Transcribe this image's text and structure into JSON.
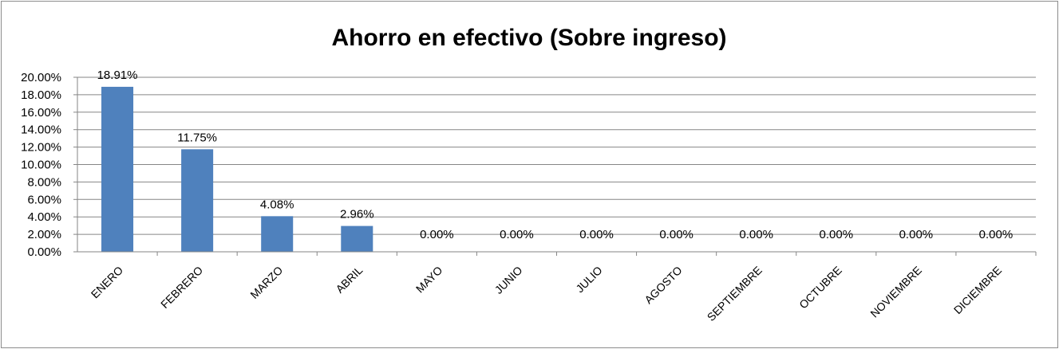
{
  "chart_data": {
    "type": "bar",
    "title": "Ahorro en efectivo (Sobre ingreso)",
    "xlabel": "",
    "ylabel": "",
    "categories": [
      "ENERO",
      "FEBRERO",
      "MARZO",
      "ABRIL",
      "MAYO",
      "JUNIO",
      "JULIO",
      "AGOSTO",
      "SEPTIEMBRE",
      "OCTUBRE",
      "NOVIEMBRE",
      "DICIEMBRE"
    ],
    "values": [
      18.91,
      11.75,
      4.08,
      2.96,
      0,
      0,
      0,
      0,
      0,
      0,
      0,
      0
    ],
    "data_labels": [
      "18.91%",
      "11.75%",
      "4.08%",
      "2.96%",
      "0.00%",
      "0.00%",
      "0.00%",
      "0.00%",
      "0.00%",
      "0.00%",
      "0.00%",
      "0.00%"
    ],
    "ylim": [
      0,
      20
    ],
    "y_ticks": [
      "0.00%",
      "2.00%",
      "4.00%",
      "6.00%",
      "8.00%",
      "10.00%",
      "12.00%",
      "14.00%",
      "16.00%",
      "18.00%",
      "20.00%"
    ],
    "grid": true,
    "legend": "none",
    "bar_color": "#4f81bd"
  }
}
